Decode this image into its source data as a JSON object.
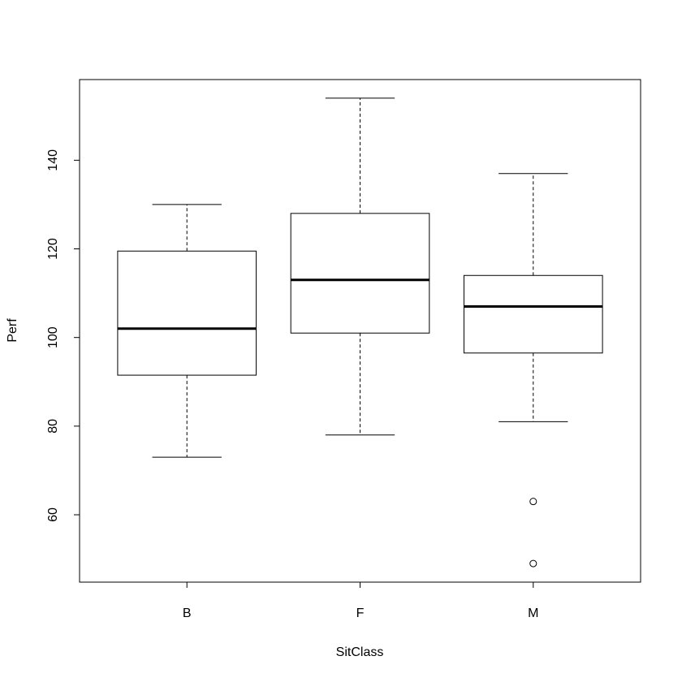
{
  "chart_data": {
    "type": "boxplot",
    "xlabel": "SitClass",
    "ylabel": "Perf",
    "categories": [
      "B",
      "F",
      "M"
    ],
    "boxes": [
      {
        "min": 73,
        "q1": 91.5,
        "median": 102,
        "q3": 119.5,
        "max": 130,
        "outliers": []
      },
      {
        "min": 78,
        "q1": 101,
        "median": 113,
        "q3": 128,
        "max": 154,
        "outliers": []
      },
      {
        "min": 81,
        "q1": 96.5,
        "median": 107,
        "q3": 114,
        "max": 137,
        "outliers": [
          63,
          49
        ]
      }
    ],
    "color": "#000000",
    "ylim": [
      44.8,
      158.2
    ],
    "yticks": [
      60,
      80,
      100,
      120,
      140
    ]
  }
}
